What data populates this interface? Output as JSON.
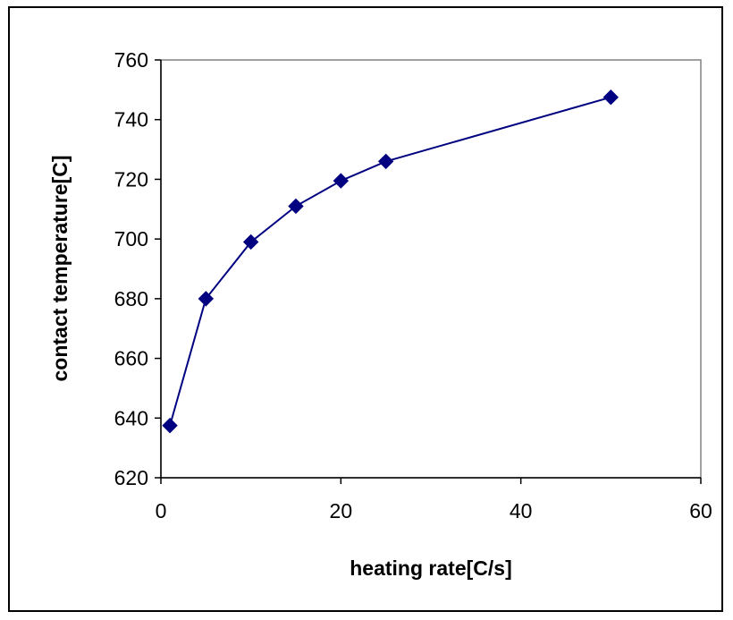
{
  "chart_data": {
    "type": "line",
    "title": "",
    "xlabel": "heating rate[C/s]",
    "ylabel": "contact temperature[C]",
    "xlim": [
      0,
      60
    ],
    "ylim": [
      620,
      760
    ],
    "xticks": [
      0,
      20,
      40,
      60
    ],
    "yticks": [
      620,
      640,
      660,
      680,
      700,
      720,
      740,
      760
    ],
    "xtick_labels": [
      "0",
      "20",
      "40",
      "60"
    ],
    "ytick_labels": [
      "620",
      "640",
      "660",
      "680",
      "700",
      "720",
      "740",
      "760"
    ],
    "grid": false,
    "legend": "none",
    "series": [
      {
        "x": [
          1,
          5,
          10,
          15,
          20,
          25,
          50
        ],
        "y": [
          637.5,
          680,
          699,
          711,
          719.5,
          726,
          747.5
        ],
        "color": "#000080",
        "marker": "diamond"
      }
    ]
  }
}
